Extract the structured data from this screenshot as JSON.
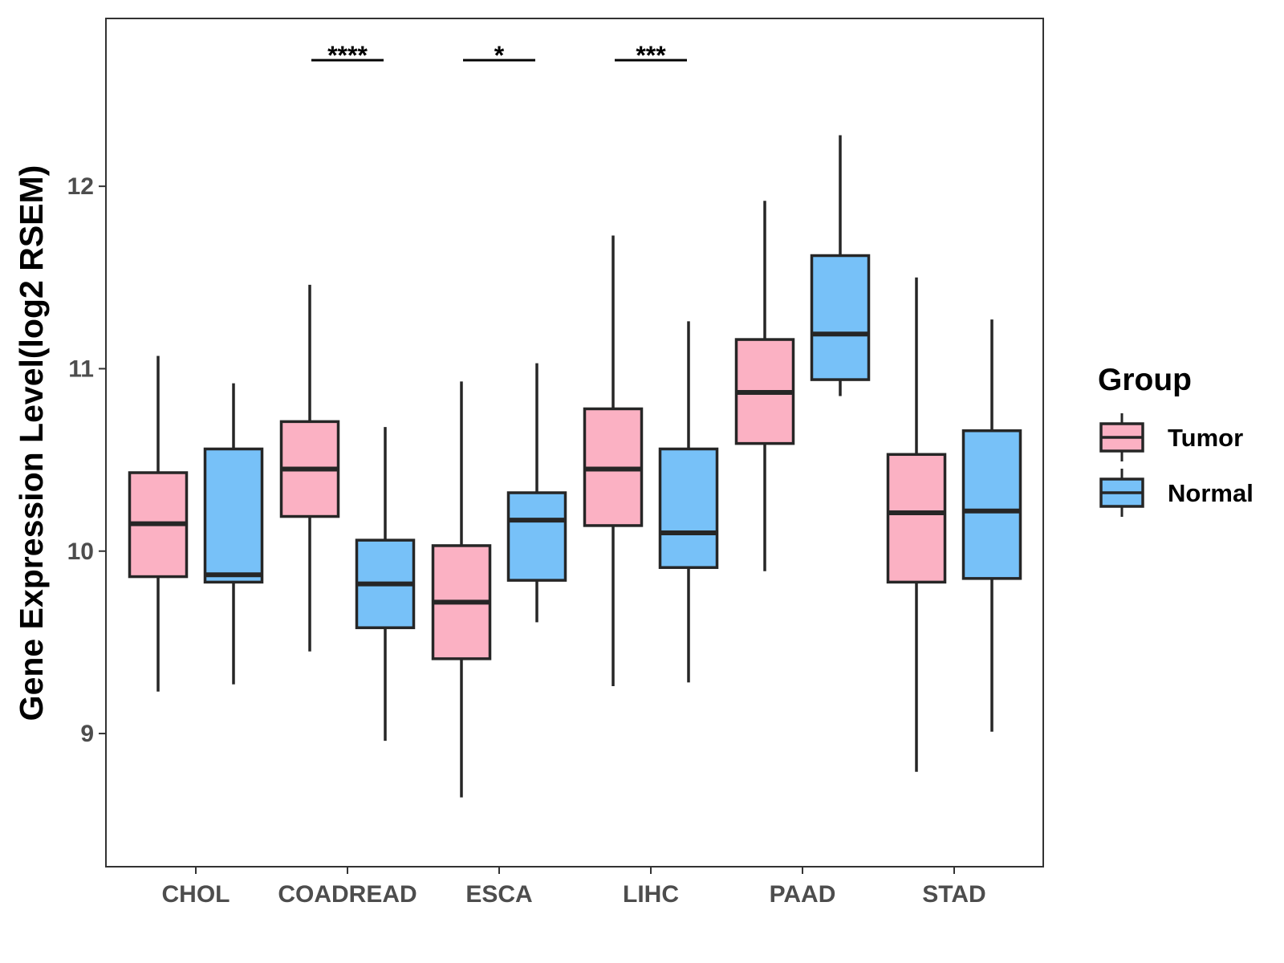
{
  "chart_data": {
    "type": "boxplot",
    "title": "",
    "xlabel": "",
    "ylabel": "Gene Expression Level(log2 RSEM)",
    "ylim": [
      8.27,
      12.92
    ],
    "yticks": [
      9,
      10,
      11,
      12
    ],
    "grid": false,
    "legend_position": "right",
    "legend": {
      "title": "Group",
      "items": [
        {
          "name": "Tumor",
          "color": "#FBB1C3"
        },
        {
          "name": "Normal",
          "color": "#77C1F8"
        }
      ]
    },
    "categories": [
      "CHOL",
      "COADREAD",
      "ESCA",
      "LIHC",
      "PAAD",
      "STAD"
    ],
    "series": [
      {
        "name": "Tumor",
        "color": "#FBB1C3",
        "boxes": [
          {
            "category": "CHOL",
            "whisker_low": 9.23,
            "q1": 9.86,
            "median": 10.15,
            "q3": 10.43,
            "whisker_high": 11.07
          },
          {
            "category": "COADREAD",
            "whisker_low": 9.45,
            "q1": 10.19,
            "median": 10.45,
            "q3": 10.71,
            "whisker_high": 11.46
          },
          {
            "category": "ESCA",
            "whisker_low": 8.65,
            "q1": 9.41,
            "median": 9.72,
            "q3": 10.03,
            "whisker_high": 10.93
          },
          {
            "category": "LIHC",
            "whisker_low": 9.26,
            "q1": 10.14,
            "median": 10.45,
            "q3": 10.78,
            "whisker_high": 11.73
          },
          {
            "category": "PAAD",
            "whisker_low": 9.89,
            "q1": 10.59,
            "median": 10.87,
            "q3": 11.16,
            "whisker_high": 11.92
          },
          {
            "category": "STAD",
            "whisker_low": 8.79,
            "q1": 9.83,
            "median": 10.21,
            "q3": 10.53,
            "whisker_high": 11.5
          }
        ]
      },
      {
        "name": "Normal",
        "color": "#77C1F8",
        "boxes": [
          {
            "category": "CHOL",
            "whisker_low": 9.27,
            "q1": 9.83,
            "median": 9.87,
            "q3": 10.56,
            "whisker_high": 10.92
          },
          {
            "category": "COADREAD",
            "whisker_low": 8.96,
            "q1": 9.58,
            "median": 9.82,
            "q3": 10.06,
            "whisker_high": 10.68
          },
          {
            "category": "ESCA",
            "whisker_low": 9.61,
            "q1": 9.84,
            "median": 10.17,
            "q3": 10.32,
            "whisker_high": 11.03
          },
          {
            "category": "LIHC",
            "whisker_low": 9.28,
            "q1": 9.91,
            "median": 10.1,
            "q3": 10.56,
            "whisker_high": 11.26
          },
          {
            "category": "PAAD",
            "whisker_low": 10.85,
            "q1": 10.94,
            "median": 11.19,
            "q3": 11.62,
            "whisker_high": 12.28
          },
          {
            "category": "STAD",
            "whisker_low": 9.01,
            "q1": 9.85,
            "median": 10.22,
            "q3": 10.66,
            "whisker_high": 11.27
          }
        ]
      }
    ],
    "annotations": [
      {
        "category": "COADREAD",
        "text": "****"
      },
      {
        "category": "ESCA",
        "text": "*"
      },
      {
        "category": "LIHC",
        "text": "***"
      }
    ]
  }
}
